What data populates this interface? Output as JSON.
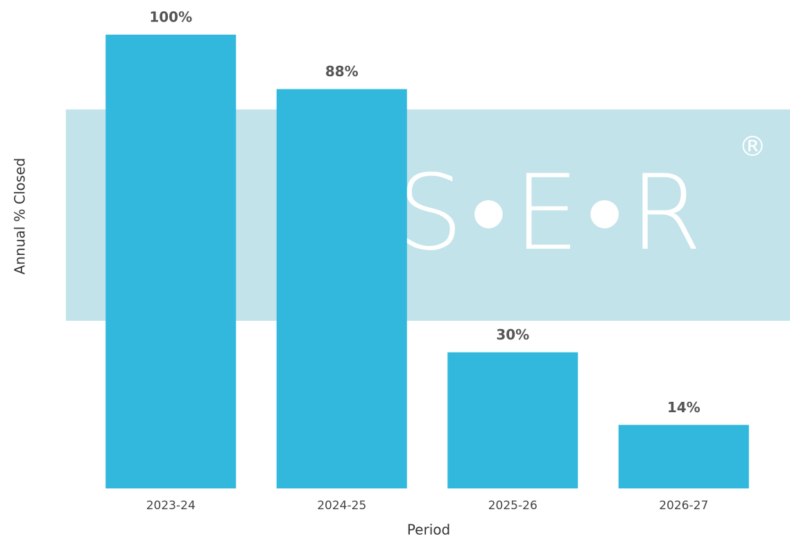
{
  "chart_data": {
    "type": "bar",
    "categories": [
      "2023-24",
      "2024-25",
      "2025-26",
      "2026-27"
    ],
    "values": [
      100,
      88,
      30,
      14
    ],
    "value_labels": [
      "100%",
      "88%",
      "30%",
      "14%"
    ],
    "color": "#33b8dd",
    "ylim": [
      0,
      100
    ],
    "xlabel": "Period",
    "ylabel": "Annual % Closed",
    "watermark": {
      "text": "A•S•E•R",
      "mark": "®"
    }
  }
}
